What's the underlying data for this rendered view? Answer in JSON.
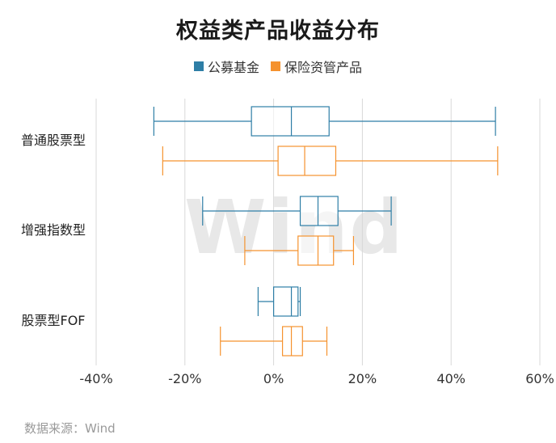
{
  "chart_data": {
    "type": "box",
    "title": "权益类产品收益分布",
    "categories": [
      "普通股票型",
      "增强指数型",
      "股票型FOF"
    ],
    "xlim": [
      -40,
      60
    ],
    "xticks": [
      -40,
      -20,
      0,
      20,
      40,
      60
    ],
    "tick_suffix": "%",
    "grid": true,
    "legend_position": "top",
    "series": [
      {
        "name": "公募基金",
        "color": "#2e7ea6",
        "boxes": [
          {
            "min": -27,
            "q1": -5,
            "median": 4,
            "q3": 12.5,
            "max": 50
          },
          {
            "min": -16,
            "q1": 6,
            "median": 10,
            "q3": 14.5,
            "max": 26.5
          },
          {
            "min": -3.5,
            "q1": 0,
            "median": 4,
            "q3": 5.5,
            "max": 6
          }
        ]
      },
      {
        "name": "保险资管产品",
        "color": "#f5922e",
        "boxes": [
          {
            "min": -25,
            "q1": 1,
            "median": 7,
            "q3": 14,
            "max": 50.5
          },
          {
            "min": -6.5,
            "q1": 5.5,
            "median": 10,
            "q3": 13.5,
            "max": 18
          },
          {
            "min": -12,
            "q1": 2,
            "median": 4,
            "q3": 6.5,
            "max": 12
          }
        ]
      }
    ]
  },
  "watermark": "Wind",
  "source": "数据来源：Wind"
}
